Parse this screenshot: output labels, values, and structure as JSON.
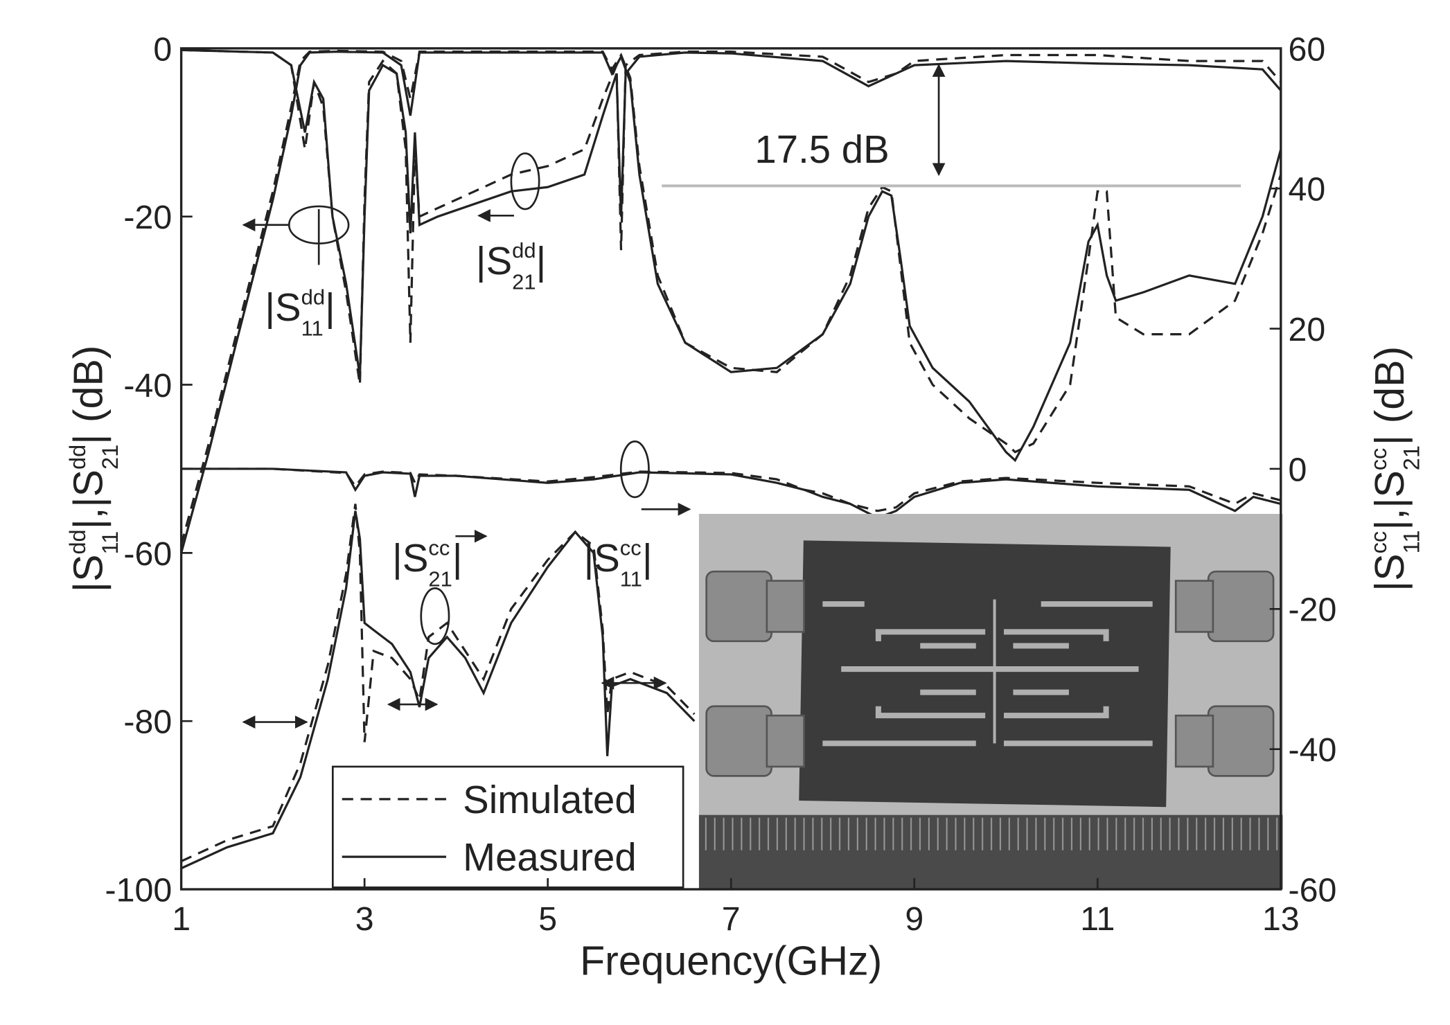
{
  "chart_data": {
    "type": "line",
    "xlabel": "Frequency(GHz)",
    "ylabel": [
      {
        "pre": "|S",
        "sup": "dd",
        "sub": "11",
        "post": "|, "
      },
      {
        "pre": "|S",
        "sup": "dd",
        "sub": "21",
        "post": "| (dB)"
      }
    ],
    "y2label": [
      {
        "pre": "|S",
        "sup": "cc",
        "sub": "11",
        "post": "|, "
      },
      {
        "pre": "|S",
        "sup": "cc",
        "sub": "21",
        "post": "| (dB)"
      }
    ],
    "xlim": [
      1,
      13
    ],
    "xticks": [
      1,
      3,
      5,
      7,
      9,
      11,
      13
    ],
    "ylim": [
      -100,
      0
    ],
    "yticks": [
      -100,
      -80,
      -60,
      -40,
      -20,
      0
    ],
    "y2lim": [
      -60,
      60
    ],
    "y2ticks": [
      -60,
      -40,
      -20,
      0,
      20,
      40,
      60
    ],
    "grid": false,
    "legend": {
      "position": "lower left",
      "entries": [
        {
          "label": "Simulated",
          "style": "dashed"
        },
        {
          "label": "Measured",
          "style": "solid"
        }
      ]
    },
    "annotations": [
      {
        "pre": "|S",
        "sup": "dd",
        "sub": "11",
        "post": "|"
      },
      {
        "pre": "|S",
        "sup": "dd",
        "sub": "21",
        "post": "|"
      },
      {
        "pre": "|S",
        "sup": "cc",
        "sub": "21",
        "post": "|"
      },
      {
        "pre": "|S",
        "sup": "cc",
        "sub": "11",
        "post": "|"
      },
      {
        "pre": "17.5 dB"
      }
    ],
    "series": [
      {
        "style": "solid",
        "color": "#222",
        "axis": "y",
        "x": [
          1,
          2,
          2.2,
          2.35,
          2.45,
          2.55,
          2.65,
          2.8,
          2.95,
          3.0,
          3.05,
          3.2,
          3.35,
          3.45,
          3.5,
          3.55,
          3.6,
          3.8,
          4.2,
          4.6,
          5.0,
          5.4,
          5.6,
          5.75,
          5.8,
          5.85,
          6.0,
          6.5,
          7,
          8,
          8.5,
          8.8,
          9,
          10,
          11,
          12,
          12.8,
          13
        ],
        "values": [
          -0.2,
          -0.5,
          -2,
          -10,
          -4,
          -6,
          -20,
          -28,
          -39,
          -20,
          -5,
          -2,
          -3,
          -10,
          -22,
          -10,
          -21,
          -20,
          -18.5,
          -17,
          -16.5,
          -15,
          -8,
          -3,
          -20,
          -3,
          -1,
          -0.5,
          -0.6,
          -1.5,
          -4.5,
          -3,
          -2,
          -1.5,
          -1.8,
          -2,
          -2.5,
          -5
        ]
      },
      {
        "style": "dashed",
        "color": "#222",
        "axis": "y",
        "x": [
          1,
          2,
          2.2,
          2.35,
          2.45,
          2.55,
          2.65,
          2.8,
          2.95,
          3.0,
          3.05,
          3.2,
          3.35,
          3.45,
          3.5,
          3.55,
          3.6,
          3.8,
          4.2,
          4.6,
          5.0,
          5.4,
          5.6,
          5.75,
          5.8,
          5.85,
          6.0,
          6.5,
          7,
          8,
          8.5,
          8.8,
          9,
          10,
          11,
          12,
          12.8,
          13
        ],
        "values": [
          -0.2,
          -0.5,
          -2,
          -12,
          -4,
          -7,
          -20,
          -29,
          -40,
          -18,
          -4,
          -1.5,
          -3,
          -12,
          -35,
          -12,
          -20,
          -19,
          -17,
          -15,
          -14,
          -12,
          -6,
          -2,
          -24,
          -2,
          -0.8,
          -0.4,
          -0.4,
          -1,
          -4,
          -3,
          -1.5,
          -0.8,
          -0.8,
          -1.5,
          -1.5,
          -4
        ]
      },
      {
        "style": "solid",
        "color": "#222",
        "axis": "y",
        "x": [
          1,
          1.3,
          1.6,
          2.0,
          2.2,
          2.3,
          2.4,
          2.7,
          3.2,
          3.4,
          3.5,
          3.6,
          5.6,
          5.7,
          5.8,
          5.9,
          6.0,
          6.2,
          6.5,
          7,
          7.5,
          8,
          8.3,
          8.5,
          8.65,
          8.75,
          8.85,
          8.95,
          9.2,
          9.6,
          10,
          10.1,
          10.3,
          10.7,
          10.9,
          11,
          11.1,
          11.2,
          11.5,
          12,
          12.5,
          12.8,
          13
        ],
        "values": [
          -60,
          -48,
          -35,
          -18,
          -8,
          -2,
          -0.5,
          -0.4,
          -0.5,
          -2,
          -8,
          -0.5,
          -0.5,
          -3,
          -1,
          -4,
          -15,
          -28,
          -35,
          -38.5,
          -38,
          -34,
          -28,
          -20,
          -17,
          -17.5,
          -25,
          -33,
          -38,
          -42,
          -48,
          -49,
          -45,
          -35,
          -23,
          -21,
          -27,
          -30,
          -29,
          -27,
          -28,
          -20,
          -12
        ]
      },
      {
        "style": "dashed",
        "color": "#222",
        "axis": "y",
        "x": [
          1,
          1.3,
          1.6,
          2.0,
          2.2,
          2.3,
          2.4,
          2.7,
          3.2,
          3.4,
          3.5,
          3.6,
          5.6,
          5.7,
          5.8,
          5.9,
          6.0,
          6.2,
          6.5,
          7,
          7.5,
          8,
          8.3,
          8.5,
          8.65,
          8.75,
          8.85,
          8.95,
          9.2,
          9.6,
          10,
          10.1,
          10.3,
          10.7,
          10.9,
          11,
          11.1,
          11.2,
          11.5,
          12,
          12.5,
          12.8,
          13
        ],
        "values": [
          -59,
          -47,
          -34,
          -17,
          -7,
          -1.5,
          -0.4,
          -0.3,
          -0.4,
          -1.5,
          -6,
          -0.4,
          -0.4,
          -2.5,
          -0.8,
          -3.5,
          -14,
          -27,
          -35,
          -38,
          -38.5,
          -34,
          -27,
          -19,
          -16.5,
          -17,
          -26,
          -35,
          -40,
          -44,
          -47,
          -48,
          -47,
          -40,
          -25,
          -17,
          -17,
          -32,
          -34,
          -34,
          -30,
          -22,
          -15
        ]
      },
      {
        "style": "solid",
        "color": "#222",
        "axis": "y2",
        "x": [
          1,
          2,
          2.8,
          2.9,
          3.0,
          3.2,
          3.5,
          3.55,
          3.6,
          4,
          5,
          5.5,
          6,
          7,
          7.5,
          7.8,
          8,
          8.3,
          8.6,
          8.8,
          9.0,
          9.5,
          10,
          11,
          12,
          12.5,
          12.7,
          13
        ],
        "values": [
          0,
          0,
          -0.5,
          -3,
          -1,
          -0.5,
          -0.7,
          -4,
          -1,
          -1,
          -2,
          -1.5,
          -0.5,
          -0.8,
          -2,
          -3,
          -4,
          -5,
          -7,
          -6,
          -4,
          -2,
          -1.5,
          -2.5,
          -3,
          -6,
          -4,
          -5
        ]
      },
      {
        "style": "dashed",
        "color": "#222",
        "axis": "y2",
        "x": [
          1,
          2,
          2.8,
          2.9,
          3.0,
          3.2,
          3.5,
          3.55,
          3.6,
          4,
          5,
          5.5,
          6,
          7,
          7.5,
          7.8,
          8,
          8.3,
          8.6,
          8.8,
          9.0,
          9.5,
          10,
          11,
          12,
          12.5,
          12.7,
          13
        ],
        "values": [
          0,
          0,
          -0.6,
          -2.5,
          -0.8,
          -0.4,
          -0.6,
          -2,
          -0.8,
          -1,
          -1.8,
          -1.2,
          -0.4,
          -0.6,
          -1.5,
          -3,
          -3.5,
          -5,
          -6,
          -5.5,
          -3.5,
          -1.8,
          -1.3,
          -2,
          -2.5,
          -5,
          -3.5,
          -4.5
        ]
      },
      {
        "style": "solid",
        "color": "#222",
        "axis": "y2",
        "x": [
          1,
          1.5,
          2,
          2.3,
          2.6,
          2.8,
          2.9,
          2.95,
          3.0,
          3.1,
          3.3,
          3.5,
          3.6,
          3.7,
          3.9,
          4.1,
          4.3,
          4.6,
          5,
          5.3,
          5.5,
          5.6,
          5.65,
          5.7,
          5.9,
          6.3,
          6.6
        ],
        "values": [
          -57,
          -54,
          -52,
          -44,
          -30,
          -17,
          -6,
          -10,
          -22,
          -23,
          -25,
          -29,
          -34,
          -27,
          -24,
          -27,
          -32,
          -22,
          -14,
          -9,
          -12,
          -24,
          -41,
          -31,
          -30,
          -32,
          -36
        ]
      },
      {
        "style": "dashed",
        "color": "#222",
        "axis": "y2",
        "x": [
          1,
          1.5,
          2,
          2.3,
          2.6,
          2.8,
          2.9,
          2.95,
          3.0,
          3.1,
          3.3,
          3.5,
          3.6,
          3.7,
          3.9,
          4.1,
          4.3,
          4.6,
          5,
          5.3,
          5.5,
          5.6,
          5.65,
          5.7,
          5.9,
          6.3,
          6.6
        ],
        "values": [
          -56,
          -53,
          -51,
          -42,
          -28,
          -15,
          -5,
          -12,
          -39,
          -26,
          -27,
          -30,
          -33,
          -24,
          -22,
          -26,
          -30,
          -20,
          -13,
          -9,
          -11,
          -23,
          -35,
          -30,
          -29,
          -31,
          -35
        ]
      }
    ]
  }
}
